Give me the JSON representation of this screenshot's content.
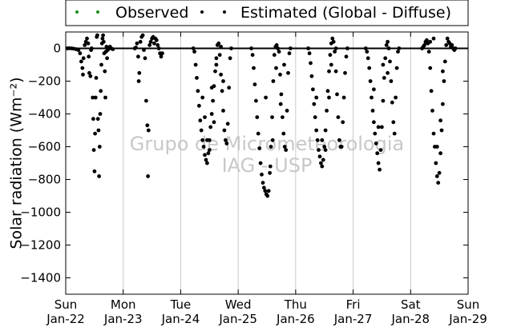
{
  "chart_data": {
    "type": "scatter",
    "ylabel": "Solar radiation (Wm⁻²)",
    "ylim": [
      -1500,
      100
    ],
    "xlim": [
      0,
      7
    ],
    "yticks": [
      0,
      -200,
      -400,
      -600,
      -800,
      -1000,
      -1200,
      -1400
    ],
    "xticks": [
      {
        "day": "Sun",
        "date": "Jan-22",
        "x": 0
      },
      {
        "day": "Mon",
        "date": "Jan-23",
        "x": 1
      },
      {
        "day": "Tue",
        "date": "Jan-24",
        "x": 2
      },
      {
        "day": "Wed",
        "date": "Jan-25",
        "x": 3
      },
      {
        "day": "Thu",
        "date": "Jan-26",
        "x": 4
      },
      {
        "day": "Fri",
        "date": "Jan-27",
        "x": 5
      },
      {
        "day": "Sat",
        "date": "Jan-28",
        "x": 6
      },
      {
        "day": "Sun",
        "date": "Jan-29",
        "x": 7
      }
    ],
    "grid": "vertical",
    "legend_position": "top",
    "watermark": [
      "Grupo de Micrometeorologia",
      "IAG - USP"
    ],
    "series": [
      {
        "name": "Observed",
        "color": "#1f8a1f",
        "points": []
      },
      {
        "name": "Estimated (Global - Diffuse)",
        "color": "#000000",
        "points": [
          [
            0.03,
            0
          ],
          [
            0.06,
            1
          ],
          [
            0.1,
            0
          ],
          [
            0.14,
            -2
          ],
          [
            0.18,
            -5
          ],
          [
            0.22,
            -10
          ],
          [
            0.25,
            -30
          ],
          [
            0.27,
            -80
          ],
          [
            0.29,
            -120
          ],
          [
            0.3,
            -160
          ],
          [
            0.31,
            -60
          ],
          [
            0.33,
            20
          ],
          [
            0.35,
            40
          ],
          [
            0.37,
            60
          ],
          [
            0.39,
            30
          ],
          [
            0.4,
            -50
          ],
          [
            0.41,
            -150
          ],
          [
            0.43,
            -170
          ],
          [
            0.44,
            -10
          ],
          [
            0.45,
            0
          ],
          [
            0.47,
            -300
          ],
          [
            0.48,
            -430
          ],
          [
            0.49,
            -620
          ],
          [
            0.5,
            -750
          ],
          [
            0.51,
            -520
          ],
          [
            0.52,
            -300
          ],
          [
            0.53,
            -180
          ],
          [
            0.54,
            70
          ],
          [
            0.55,
            80
          ],
          [
            0.56,
            -430
          ],
          [
            0.57,
            -500
          ],
          [
            0.58,
            -780
          ],
          [
            0.59,
            -600
          ],
          [
            0.6,
            -400
          ],
          [
            0.61,
            -260
          ],
          [
            0.62,
            -100
          ],
          [
            0.63,
            30
          ],
          [
            0.64,
            60
          ],
          [
            0.65,
            80
          ],
          [
            0.66,
            40
          ],
          [
            0.67,
            -30
          ],
          [
            0.68,
            -140
          ],
          [
            0.69,
            -300
          ],
          [
            0.7,
            -20
          ],
          [
            0.71,
            10
          ],
          [
            0.72,
            -60
          ],
          [
            0.73,
            -10
          ],
          [
            0.75,
            0
          ],
          [
            0.77,
            10
          ],
          [
            0.79,
            0
          ],
          [
            0.82,
            -5
          ],
          [
            1.2,
            0
          ],
          [
            1.22,
            5
          ],
          [
            1.24,
            30
          ],
          [
            1.26,
            -50
          ],
          [
            1.27,
            -200
          ],
          [
            1.28,
            -150
          ],
          [
            1.3,
            40
          ],
          [
            1.32,
            70
          ],
          [
            1.34,
            80
          ],
          [
            1.36,
            -10
          ],
          [
            1.38,
            -60
          ],
          [
            1.4,
            -320
          ],
          [
            1.42,
            -470
          ],
          [
            1.43,
            -780
          ],
          [
            1.44,
            -500
          ],
          [
            1.46,
            20
          ],
          [
            1.48,
            40
          ],
          [
            1.5,
            60
          ],
          [
            1.52,
            70
          ],
          [
            1.54,
            30
          ],
          [
            1.56,
            60
          ],
          [
            1.58,
            50
          ],
          [
            1.6,
            20
          ],
          [
            1.62,
            0
          ],
          [
            1.64,
            -30
          ],
          [
            1.66,
            -50
          ],
          [
            1.68,
            -30
          ],
          [
            2.22,
            0
          ],
          [
            2.24,
            -20
          ],
          [
            2.26,
            -100
          ],
          [
            2.28,
            -180
          ],
          [
            2.3,
            -260
          ],
          [
            2.32,
            -350
          ],
          [
            2.34,
            -440
          ],
          [
            2.36,
            -500
          ],
          [
            2.38,
            -560
          ],
          [
            2.4,
            -600
          ],
          [
            2.42,
            -650
          ],
          [
            2.44,
            -680
          ],
          [
            2.46,
            -700
          ],
          [
            2.48,
            -640
          ],
          [
            2.5,
            -560
          ],
          [
            2.52,
            -480
          ],
          [
            2.54,
            -400
          ],
          [
            2.56,
            -320
          ],
          [
            2.58,
            -230
          ],
          [
            2.6,
            -140
          ],
          [
            2.62,
            -60
          ],
          [
            2.64,
            20
          ],
          [
            2.66,
            30
          ],
          [
            2.68,
            -40
          ],
          [
            2.7,
            -160
          ],
          [
            2.72,
            -260
          ],
          [
            2.74,
            -380
          ],
          [
            2.76,
            -500
          ],
          [
            2.78,
            -560
          ],
          [
            2.8,
            -580
          ],
          [
            2.82,
            -460
          ],
          [
            2.84,
            -240
          ],
          [
            2.86,
            -60
          ],
          [
            2.88,
            0
          ],
          [
            2.38,
            -300
          ],
          [
            2.42,
            -420
          ],
          [
            2.46,
            -560
          ],
          [
            2.5,
            -620
          ],
          [
            2.54,
            -240
          ],
          [
            2.58,
            -450
          ],
          [
            2.62,
            -100
          ],
          [
            2.7,
            10
          ],
          [
            2.74,
            -200
          ],
          [
            3.23,
            0
          ],
          [
            3.25,
            -40
          ],
          [
            3.27,
            -120
          ],
          [
            3.29,
            -220
          ],
          [
            3.31,
            -320
          ],
          [
            3.33,
            -420
          ],
          [
            3.35,
            -520
          ],
          [
            3.37,
            -610
          ],
          [
            3.39,
            -700
          ],
          [
            3.41,
            -770
          ],
          [
            3.43,
            -820
          ],
          [
            3.45,
            -850
          ],
          [
            3.47,
            -870
          ],
          [
            3.49,
            -890
          ],
          [
            3.51,
            -900
          ],
          [
            3.53,
            -870
          ],
          [
            3.55,
            -760
          ],
          [
            3.57,
            -600
          ],
          [
            3.59,
            -420
          ],
          [
            3.61,
            -200
          ],
          [
            3.63,
            -40
          ],
          [
            3.65,
            10
          ],
          [
            3.67,
            20
          ],
          [
            3.69,
            0
          ],
          [
            3.71,
            -20
          ],
          [
            3.73,
            -160
          ],
          [
            3.75,
            -280
          ],
          [
            3.77,
            -420
          ],
          [
            3.79,
            -520
          ],
          [
            3.81,
            -600
          ],
          [
            3.83,
            -620
          ],
          [
            3.85,
            -380
          ],
          [
            3.87,
            -150
          ],
          [
            3.89,
            -30
          ],
          [
            3.91,
            0
          ],
          [
            3.48,
            -300
          ],
          [
            3.56,
            -720
          ],
          [
            3.6,
            -560
          ],
          [
            3.66,
            -120
          ],
          [
            3.74,
            -340
          ],
          [
            3.8,
            -100
          ],
          [
            4.22,
            0
          ],
          [
            4.24,
            -30
          ],
          [
            4.26,
            -90
          ],
          [
            4.28,
            -170
          ],
          [
            4.3,
            -250
          ],
          [
            4.32,
            -340
          ],
          [
            4.34,
            -420
          ],
          [
            4.36,
            -500
          ],
          [
            4.38,
            -560
          ],
          [
            4.4,
            -620
          ],
          [
            4.42,
            -660
          ],
          [
            4.44,
            -700
          ],
          [
            4.46,
            -720
          ],
          [
            4.48,
            -680
          ],
          [
            4.5,
            -600
          ],
          [
            4.52,
            -500
          ],
          [
            4.54,
            -380
          ],
          [
            4.56,
            -260
          ],
          [
            4.58,
            -140
          ],
          [
            4.6,
            -40
          ],
          [
            4.62,
            30
          ],
          [
            4.64,
            60
          ],
          [
            4.66,
            40
          ],
          [
            4.68,
            -20
          ],
          [
            4.7,
            -140
          ],
          [
            4.72,
            -280
          ],
          [
            4.74,
            -420
          ],
          [
            4.76,
            -560
          ],
          [
            4.78,
            -600
          ],
          [
            4.8,
            -600
          ],
          [
            4.82,
            -450
          ],
          [
            4.84,
            -300
          ],
          [
            4.86,
            -150
          ],
          [
            4.88,
            -50
          ],
          [
            4.9,
            0
          ],
          [
            4.36,
            -300
          ],
          [
            4.46,
            -560
          ],
          [
            4.52,
            -620
          ],
          [
            4.58,
            -300
          ],
          [
            4.62,
            -100
          ],
          [
            4.7,
            0
          ],
          [
            5.22,
            0
          ],
          [
            5.24,
            -20
          ],
          [
            5.26,
            -60
          ],
          [
            5.28,
            -120
          ],
          [
            5.3,
            -200
          ],
          [
            5.32,
            -300
          ],
          [
            5.34,
            -380
          ],
          [
            5.36,
            -450
          ],
          [
            5.38,
            -520
          ],
          [
            5.4,
            -580
          ],
          [
            5.42,
            -640
          ],
          [
            5.44,
            -700
          ],
          [
            5.46,
            -740
          ],
          [
            5.48,
            -620
          ],
          [
            5.5,
            -480
          ],
          [
            5.52,
            -320
          ],
          [
            5.54,
            -180
          ],
          [
            5.56,
            -60
          ],
          [
            5.58,
            20
          ],
          [
            5.6,
            40
          ],
          [
            5.62,
            0
          ],
          [
            5.64,
            -80
          ],
          [
            5.66,
            -200
          ],
          [
            5.68,
            -330
          ],
          [
            5.7,
            -450
          ],
          [
            5.72,
            -520
          ],
          [
            5.74,
            -300
          ],
          [
            5.76,
            -120
          ],
          [
            5.78,
            -20
          ],
          [
            5.8,
            0
          ],
          [
            5.36,
            -250
          ],
          [
            5.44,
            -480
          ],
          [
            5.52,
            -100
          ],
          [
            5.6,
            -150
          ],
          [
            6.2,
            0
          ],
          [
            6.22,
            10
          ],
          [
            6.24,
            20
          ],
          [
            6.26,
            40
          ],
          [
            6.28,
            50
          ],
          [
            6.3,
            30
          ],
          [
            6.32,
            -20
          ],
          [
            6.34,
            -120
          ],
          [
            6.36,
            -260
          ],
          [
            6.38,
            -380
          ],
          [
            6.4,
            -520
          ],
          [
            6.42,
            -600
          ],
          [
            6.44,
            -700
          ],
          [
            6.46,
            -780
          ],
          [
            6.48,
            -820
          ],
          [
            6.5,
            -760
          ],
          [
            6.52,
            -640
          ],
          [
            6.54,
            -500
          ],
          [
            6.56,
            -340
          ],
          [
            6.58,
            -200
          ],
          [
            6.6,
            -80
          ],
          [
            6.62,
            20
          ],
          [
            6.64,
            60
          ],
          [
            6.66,
            40
          ],
          [
            6.68,
            30
          ],
          [
            6.7,
            10
          ],
          [
            6.72,
            20
          ],
          [
            6.74,
            0
          ],
          [
            6.76,
            -10
          ],
          [
            6.78,
            0
          ],
          [
            6.34,
            40
          ],
          [
            6.4,
            60
          ],
          [
            6.46,
            -600
          ],
          [
            6.52,
            -440
          ],
          [
            6.56,
            -140
          ]
        ]
      }
    ]
  }
}
